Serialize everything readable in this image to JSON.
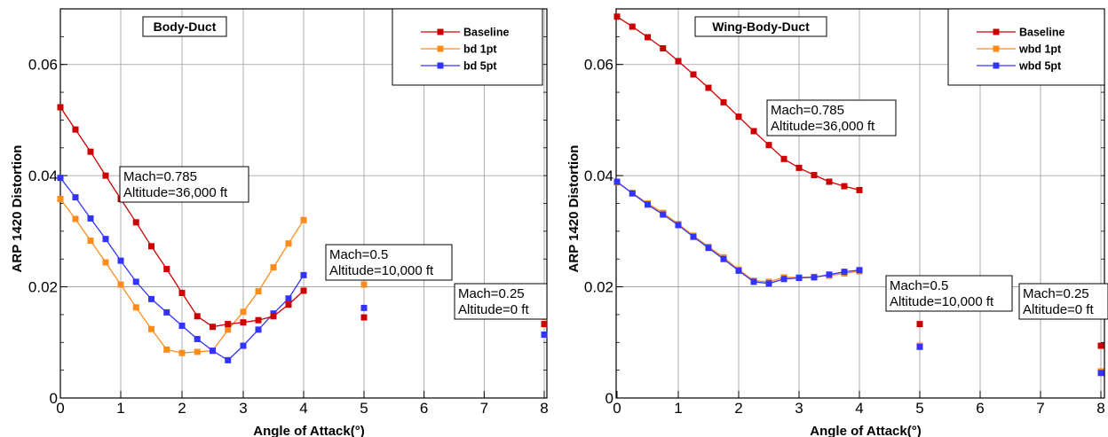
{
  "chart_data": [
    {
      "type": "line",
      "title": "Body-Duct",
      "xlabel": "Angle of Attack(°)",
      "ylabel": "ARP 1420 Distortion",
      "xlim": [
        0,
        8
      ],
      "ylim": [
        0,
        0.07
      ],
      "x_axis_note": "axis is piecewise: 0–5 uniform, then gap to 8",
      "xticks": [
        0,
        1,
        2,
        3,
        4,
        5,
        6,
        7,
        8
      ],
      "xtick_labels": [
        "0",
        "1",
        "2",
        "3",
        "4",
        "5",
        "6",
        "7",
        "8"
      ],
      "yticks": [
        0,
        0.02,
        0.04,
        0.06
      ],
      "ytick_labels": [
        "0",
        "0.02",
        "0.04",
        "0.06"
      ],
      "grid": true,
      "legend_position": "top-right",
      "series": [
        {
          "name": "Baseline",
          "color": "#cc0000",
          "marker": "square",
          "line_x": [
            0,
            0.25,
            0.5,
            0.75,
            1,
            1.25,
            1.5,
            1.75,
            2,
            2.25,
            2.5,
            2.75,
            3,
            3.25,
            3.5,
            3.75,
            4
          ],
          "line_y": [
            0.0523,
            0.0483,
            0.0443,
            0.04,
            0.0358,
            0.0316,
            0.0273,
            0.0232,
            0.0189,
            0.0147,
            0.0128,
            0.0133,
            0.0136,
            0.014,
            0.0147,
            0.0168,
            0.0193
          ],
          "extra_x": [
            5,
            8
          ],
          "extra_y": [
            0.0145,
            0.0133
          ]
        },
        {
          "name": "bd 1pt",
          "color": "#ff8c1a",
          "marker": "square",
          "line_x": [
            0,
            0.25,
            0.5,
            0.75,
            1,
            1.25,
            1.5,
            1.75,
            2,
            2.25,
            2.5,
            2.75,
            3,
            3.25,
            3.5,
            3.75,
            4
          ],
          "line_y": [
            0.0358,
            0.0322,
            0.0283,
            0.0244,
            0.0204,
            0.0163,
            0.0124,
            0.0087,
            0.0081,
            0.0083,
            0.0085,
            0.0123,
            0.0155,
            0.0192,
            0.0235,
            0.0278,
            0.032
          ],
          "extra_x": [
            5,
            8
          ],
          "extra_y": [
            0.0204,
            0.0146
          ]
        },
        {
          "name": "bd 5pt",
          "color": "#3333ff",
          "marker": "square",
          "line_x": [
            0,
            0.25,
            0.5,
            0.75,
            1,
            1.25,
            1.5,
            1.75,
            2,
            2.25,
            2.5,
            2.75,
            3,
            3.25,
            3.5,
            3.75,
            4
          ],
          "line_y": [
            0.0396,
            0.0361,
            0.0323,
            0.0286,
            0.0247,
            0.0209,
            0.0178,
            0.0154,
            0.013,
            0.0106,
            0.0085,
            0.0068,
            0.0094,
            0.0123,
            0.0152,
            0.0179,
            0.0221
          ],
          "extra_x": [
            5,
            8
          ],
          "extra_y": [
            0.0162,
            0.0114
          ]
        }
      ],
      "annotations": [
        {
          "lines": [
            "Mach=0.785",
            "Altitude=36,000 ft"
          ]
        },
        {
          "lines": [
            "Mach=0.5",
            "Altitude=10,000 ft"
          ]
        },
        {
          "lines": [
            "Mach=0.25",
            "Altitude=0 ft"
          ]
        }
      ]
    },
    {
      "type": "line",
      "title": "Wing-Body-Duct",
      "xlabel": "Angle of Attack(°)",
      "ylabel": "ARP 1420 Distortion",
      "xlim": [
        0,
        8
      ],
      "ylim": [
        0,
        0.07
      ],
      "x_axis_note": "axis is piecewise: 0–5 uniform, then gap to 8",
      "xticks": [
        0,
        1,
        2,
        3,
        4,
        5,
        6,
        7,
        8
      ],
      "xtick_labels": [
        "0",
        "1",
        "2",
        "3",
        "4",
        "5",
        "6",
        "7",
        "8"
      ],
      "yticks": [
        0,
        0.02,
        0.04,
        0.06
      ],
      "ytick_labels": [
        "0",
        "0.02",
        "0.04",
        "0.06"
      ],
      "grid": true,
      "legend_position": "top-right",
      "series": [
        {
          "name": "Baseline",
          "color": "#cc0000",
          "marker": "square",
          "line_x": [
            0,
            0.25,
            0.5,
            0.75,
            1,
            1.25,
            1.5,
            1.75,
            2,
            2.25,
            2.5,
            2.75,
            3,
            3.25,
            3.5,
            3.75,
            4
          ],
          "line_y": [
            0.0686,
            0.0668,
            0.0649,
            0.0629,
            0.0606,
            0.0582,
            0.0558,
            0.0532,
            0.0506,
            0.048,
            0.0455,
            0.043,
            0.0414,
            0.0401,
            0.0389,
            0.0381,
            0.0374
          ],
          "extra_x": [
            5,
            8
          ],
          "extra_y": [
            0.0133,
            0.0094
          ]
        },
        {
          "name": "wbd 1pt",
          "color": "#ff8c1a",
          "marker": "square",
          "line_x": [
            0,
            0.25,
            0.5,
            0.75,
            1,
            1.25,
            1.5,
            1.75,
            2,
            2.25,
            2.5,
            2.75,
            3,
            3.25,
            3.5,
            3.75,
            4
          ],
          "line_y": [
            0.0388,
            0.0369,
            0.035,
            0.0333,
            0.0313,
            0.0292,
            0.0272,
            0.0253,
            0.0231,
            0.0211,
            0.0209,
            0.0217,
            0.0217,
            0.0218,
            0.022,
            0.0224,
            0.0228
          ],
          "extra_x": [
            5,
            8
          ],
          "extra_y": [
            0.0094,
            0.0048
          ]
        },
        {
          "name": "wbd 5pt",
          "color": "#3333ff",
          "marker": "square",
          "line_x": [
            0,
            0.25,
            0.5,
            0.75,
            1,
            1.25,
            1.5,
            1.75,
            2,
            2.25,
            2.5,
            2.75,
            3,
            3.25,
            3.5,
            3.75,
            4
          ],
          "line_y": [
            0.0389,
            0.0368,
            0.0348,
            0.033,
            0.0311,
            0.029,
            0.027,
            0.025,
            0.0229,
            0.0209,
            0.0206,
            0.0214,
            0.0216,
            0.0217,
            0.0222,
            0.0227,
            0.023
          ],
          "extra_x": [
            5,
            8
          ],
          "extra_y": [
            0.0092,
            0.0045
          ]
        }
      ],
      "annotations": [
        {
          "lines": [
            "Mach=0.785",
            "Altitude=36,000 ft"
          ]
        },
        {
          "lines": [
            "Mach=0.5",
            "Altitude=10,000 ft"
          ]
        },
        {
          "lines": [
            "Mach=0.25",
            "Altitude=0 ft"
          ]
        }
      ]
    }
  ]
}
